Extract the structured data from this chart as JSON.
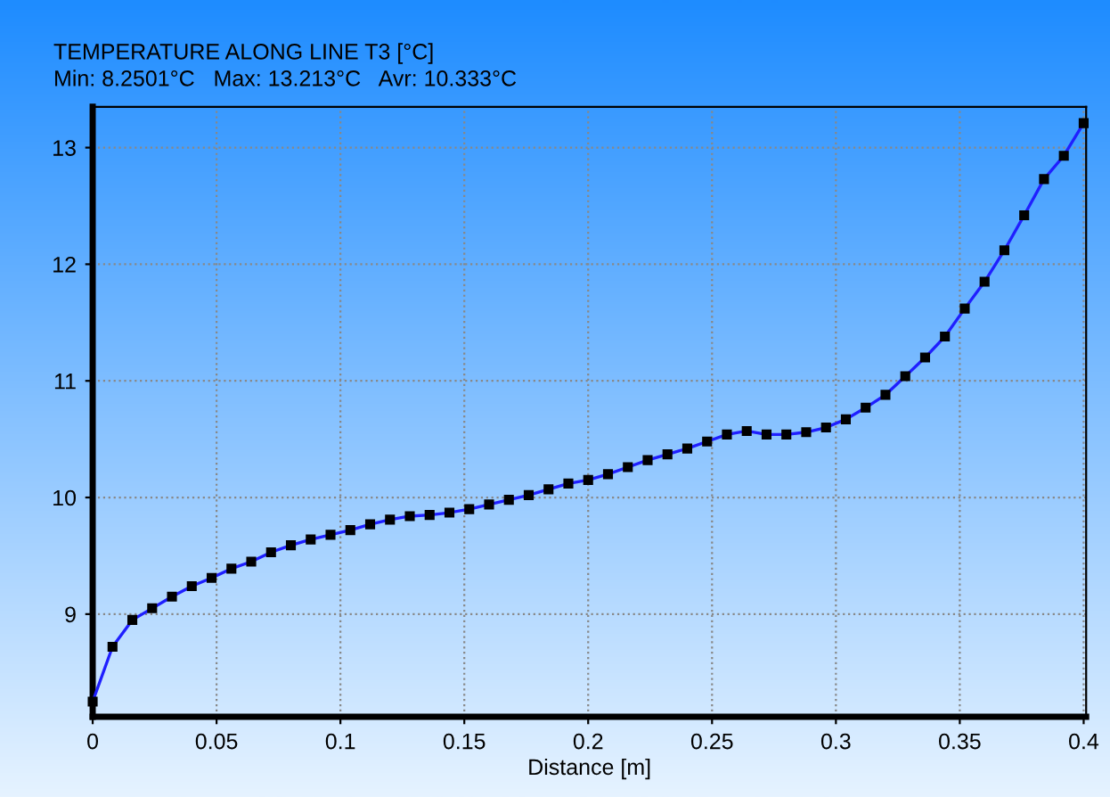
{
  "chart_data": {
    "type": "line",
    "title": "TEMPERATURE ALONG LINE T3 [°C]",
    "subtitle": "Min: 8.2501°C   Max: 13.213°C   Avr: 10.333°C",
    "xlabel": "Distance [m]",
    "x": [
      0,
      0.008,
      0.016,
      0.024,
      0.032,
      0.04,
      0.048,
      0.056,
      0.064,
      0.072,
      0.08,
      0.088,
      0.096,
      0.104,
      0.112,
      0.12,
      0.128,
      0.136,
      0.144,
      0.152,
      0.16,
      0.168,
      0.176,
      0.184,
      0.192,
      0.2,
      0.208,
      0.216,
      0.224,
      0.232,
      0.24,
      0.248,
      0.256,
      0.264,
      0.272,
      0.28,
      0.288,
      0.296,
      0.304,
      0.312,
      0.32,
      0.328,
      0.336,
      0.344,
      0.352,
      0.36,
      0.368,
      0.376,
      0.384,
      0.392,
      0.4
    ],
    "series": [
      {
        "color": "#1f1fff",
        "values": [
          8.25,
          8.72,
          8.95,
          9.05,
          9.15,
          9.24,
          9.31,
          9.39,
          9.45,
          9.53,
          9.59,
          9.64,
          9.68,
          9.72,
          9.77,
          9.81,
          9.84,
          9.85,
          9.87,
          9.9,
          9.94,
          9.98,
          10.02,
          10.07,
          10.12,
          10.15,
          10.2,
          10.26,
          10.32,
          10.37,
          10.42,
          10.48,
          10.54,
          10.57,
          10.54,
          10.54,
          10.56,
          10.6,
          10.67,
          10.77,
          10.88,
          11.04,
          11.2,
          11.38,
          11.62,
          11.85,
          12.12,
          12.42,
          12.73,
          12.93,
          13.21
        ]
      }
    ],
    "xlim": [
      0,
      0.401
    ],
    "ylim": [
      8.12,
      13.35
    ],
    "xticks": [
      {
        "value": 0,
        "label": "0"
      },
      0.05,
      0.1,
      0.15,
      0.2,
      0.25,
      0.3,
      0.35,
      0.4
    ],
    "yticks": [
      9,
      10,
      11,
      12,
      13
    ],
    "grid": true,
    "marker": "square",
    "line_style": "solid"
  }
}
